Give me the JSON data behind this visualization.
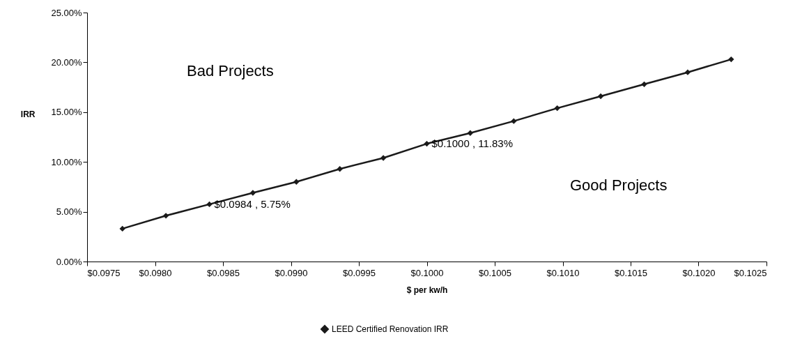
{
  "chart_data": {
    "type": "line",
    "xlabel": "$ per kw/h",
    "ylabel": "IRR",
    "x": [
      0.09776,
      0.09808,
      0.0984,
      0.09872,
      0.09904,
      0.09936,
      0.09968,
      0.1,
      0.10032,
      0.10064,
      0.10096,
      0.10128,
      0.1016,
      0.10192,
      0.10224
    ],
    "series": [
      {
        "name": "LEED Certified Renovation IRR",
        "color": "#1a1a1a",
        "values": [
          3.3,
          4.6,
          5.75,
          6.9,
          8.0,
          9.3,
          10.4,
          11.83,
          12.9,
          14.1,
          15.4,
          16.6,
          17.8,
          19.0,
          20.3
        ]
      }
    ],
    "xlim": [
      0.0975,
      0.1025
    ],
    "xticks": [
      {
        "value": 0.0975,
        "label": "$0.0975"
      },
      {
        "value": 0.098,
        "label": "$0.0980"
      },
      {
        "value": 0.0985,
        "label": "$0.0985"
      },
      {
        "value": 0.099,
        "label": "$0.0990"
      },
      {
        "value": 0.0995,
        "label": "$0.0995"
      },
      {
        "value": 0.1,
        "label": "$0.1000"
      },
      {
        "value": 0.1005,
        "label": "$0.1005"
      },
      {
        "value": 0.101,
        "label": "$0.1010"
      },
      {
        "value": 0.1015,
        "label": "$0.1015"
      },
      {
        "value": 0.102,
        "label": "$0.1020"
      },
      {
        "value": 0.1025,
        "label": "$0.1025"
      }
    ],
    "ylim": [
      0,
      25
    ],
    "yticks": [
      {
        "value": 0,
        "label": "0.00%"
      },
      {
        "value": 5,
        "label": "5.00%"
      },
      {
        "value": 10,
        "label": "10.00%"
      },
      {
        "value": 15,
        "label": "15.00%"
      },
      {
        "value": 20,
        "label": "20.00%"
      },
      {
        "value": 25,
        "label": "25.00%"
      }
    ],
    "annotations": [
      "Bad Projects",
      "Good Projects",
      {
        "text": "$0.0984 , 5.75%",
        "x": 0.0984,
        "y": 5.75
      },
      {
        "text": "$0.1000 , 11.83%",
        "x": 0.1,
        "y": 11.83
      }
    ],
    "grid": false,
    "legend": "bottom",
    "marker": "diamond",
    "line_style": "solid"
  }
}
